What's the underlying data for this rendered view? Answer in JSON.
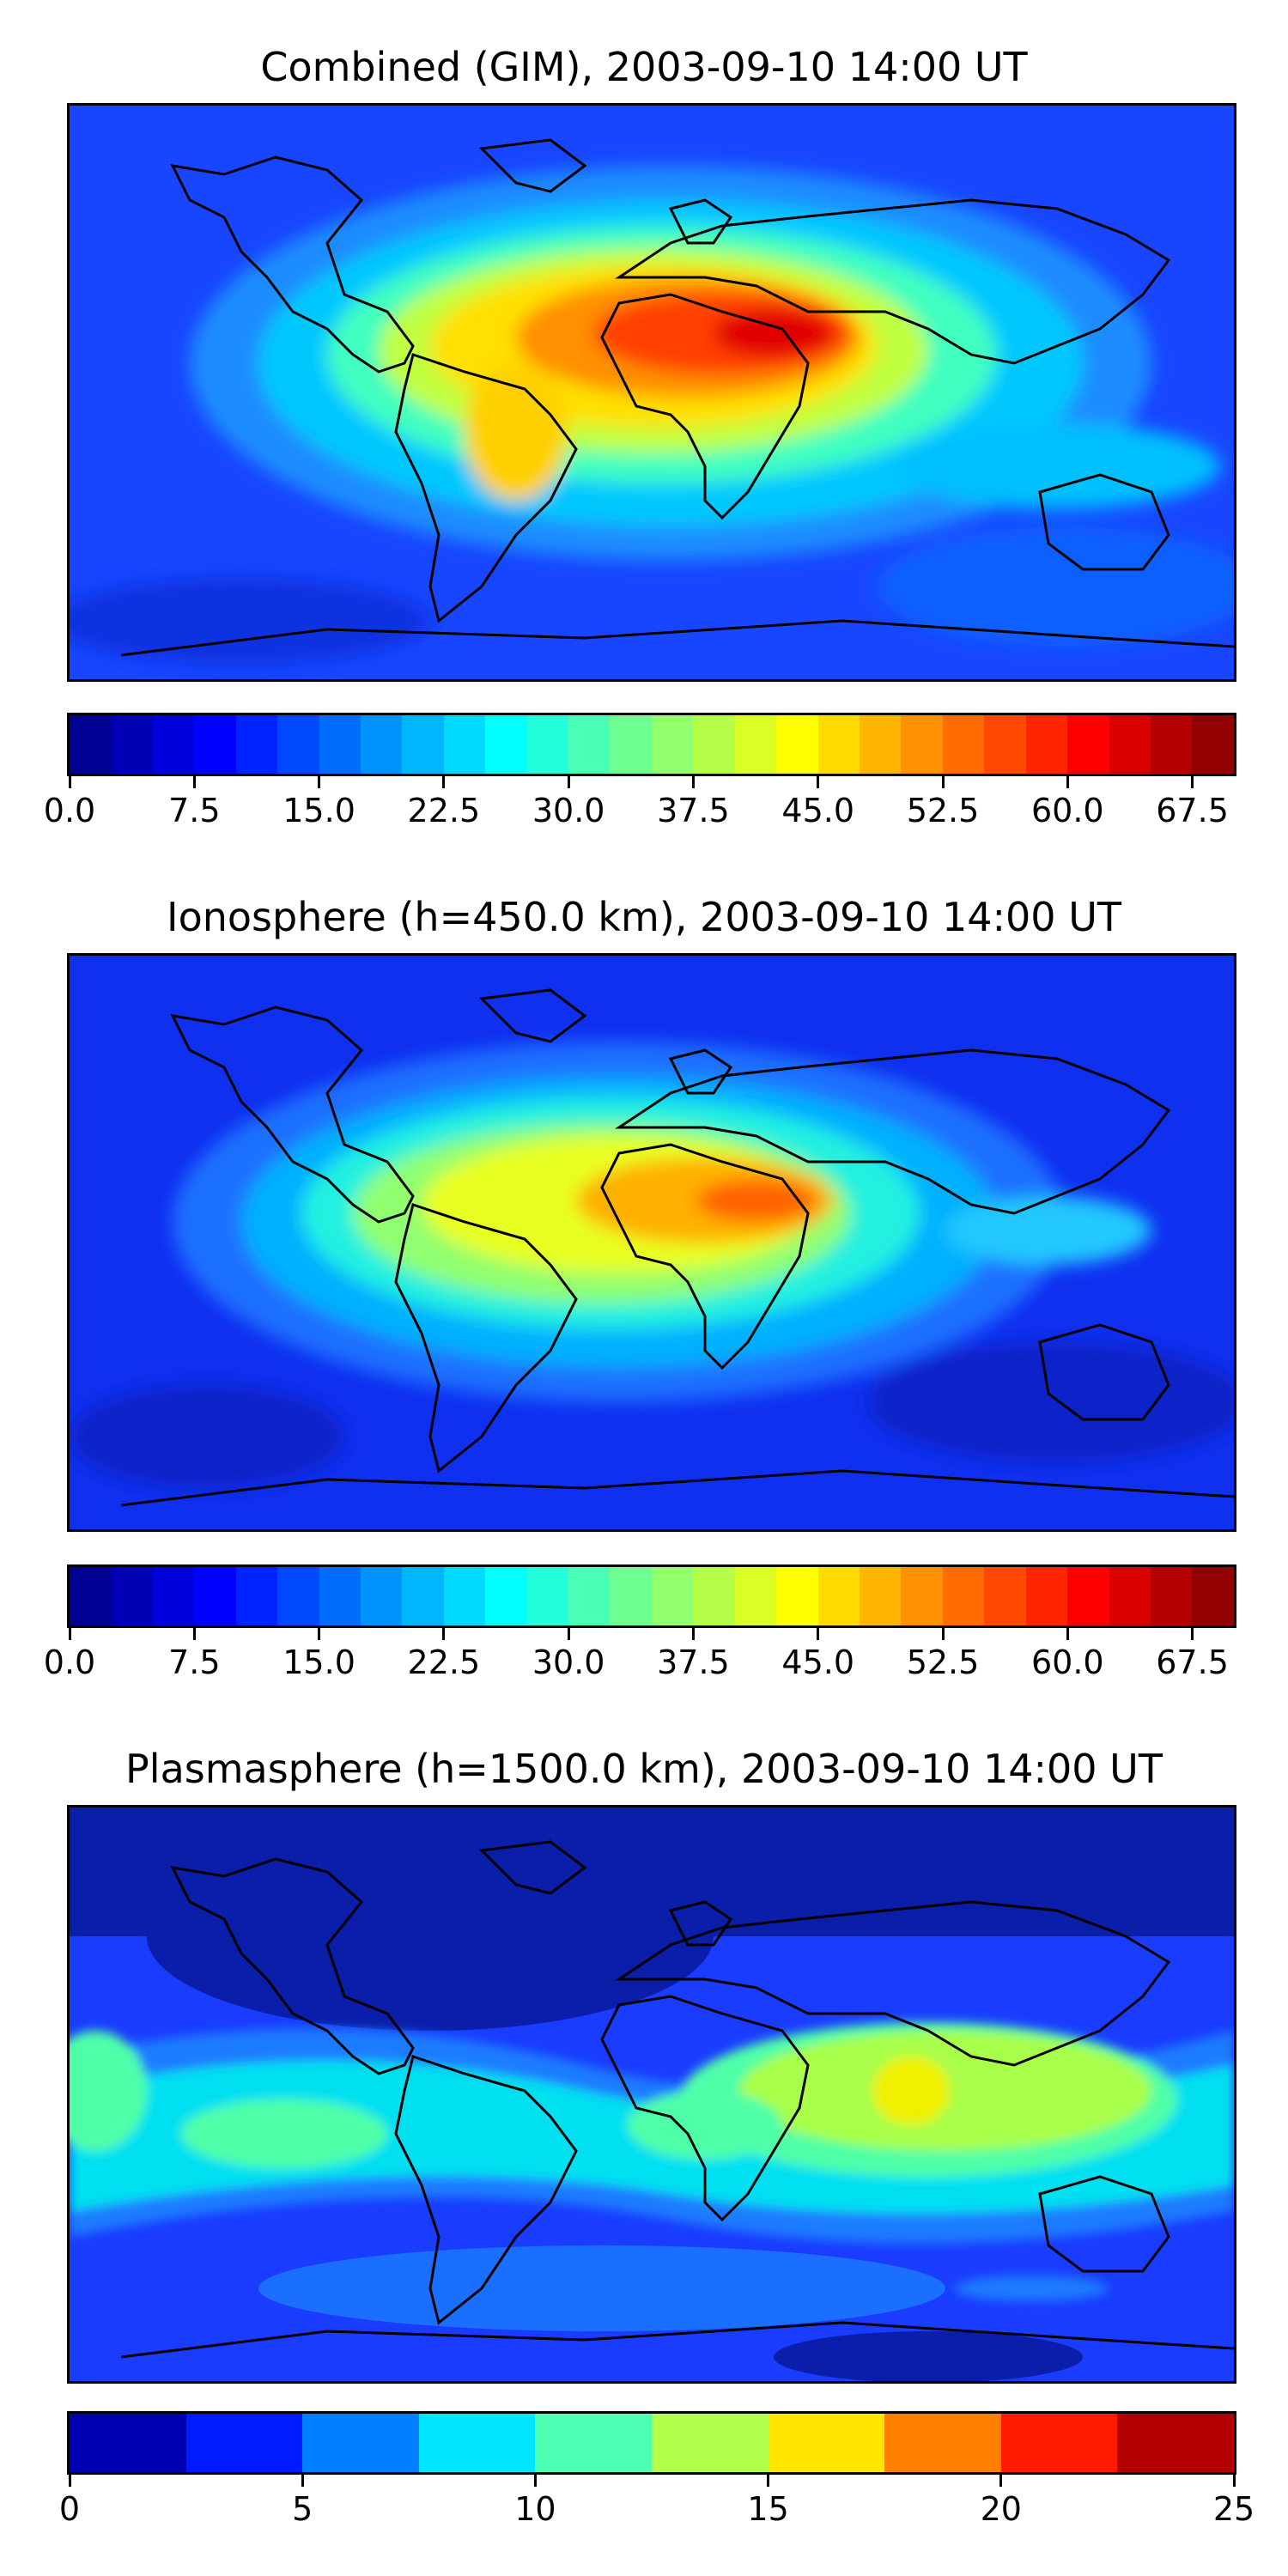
{
  "panels": [
    {
      "title": "Combined (GIM), 2003-09-10 14:00 UT",
      "colorbar": {
        "min": 0,
        "max": 70,
        "levels": 28,
        "ticks": [
          "0.0",
          "7.5",
          "15.0",
          "22.5",
          "30.0",
          "37.5",
          "45.0",
          "52.5",
          "60.0",
          "67.5"
        ],
        "tick_values": [
          0,
          7.5,
          15,
          22.5,
          30,
          37.5,
          45,
          52.5,
          60,
          67.5
        ]
      }
    },
    {
      "title": "Ionosphere  (h=450.0 km), 2003-09-10 14:00 UT",
      "colorbar": {
        "min": 0,
        "max": 70,
        "levels": 28,
        "ticks": [
          "0.0",
          "7.5",
          "15.0",
          "22.5",
          "30.0",
          "37.5",
          "45.0",
          "52.5",
          "60.0",
          "67.5"
        ],
        "tick_values": [
          0,
          7.5,
          15,
          22.5,
          30,
          37.5,
          45,
          52.5,
          60,
          67.5
        ]
      }
    },
    {
      "title": "Plasmasphere (h=1500.0 km), 2003-09-10 14:00 UT",
      "colorbar": {
        "min": 0,
        "max": 25,
        "levels": 10,
        "ticks": [
          "0",
          "5",
          "10",
          "15",
          "20",
          "25"
        ],
        "tick_values": [
          0,
          5,
          10,
          15,
          20,
          25
        ]
      }
    }
  ],
  "colormap": "jet"
}
